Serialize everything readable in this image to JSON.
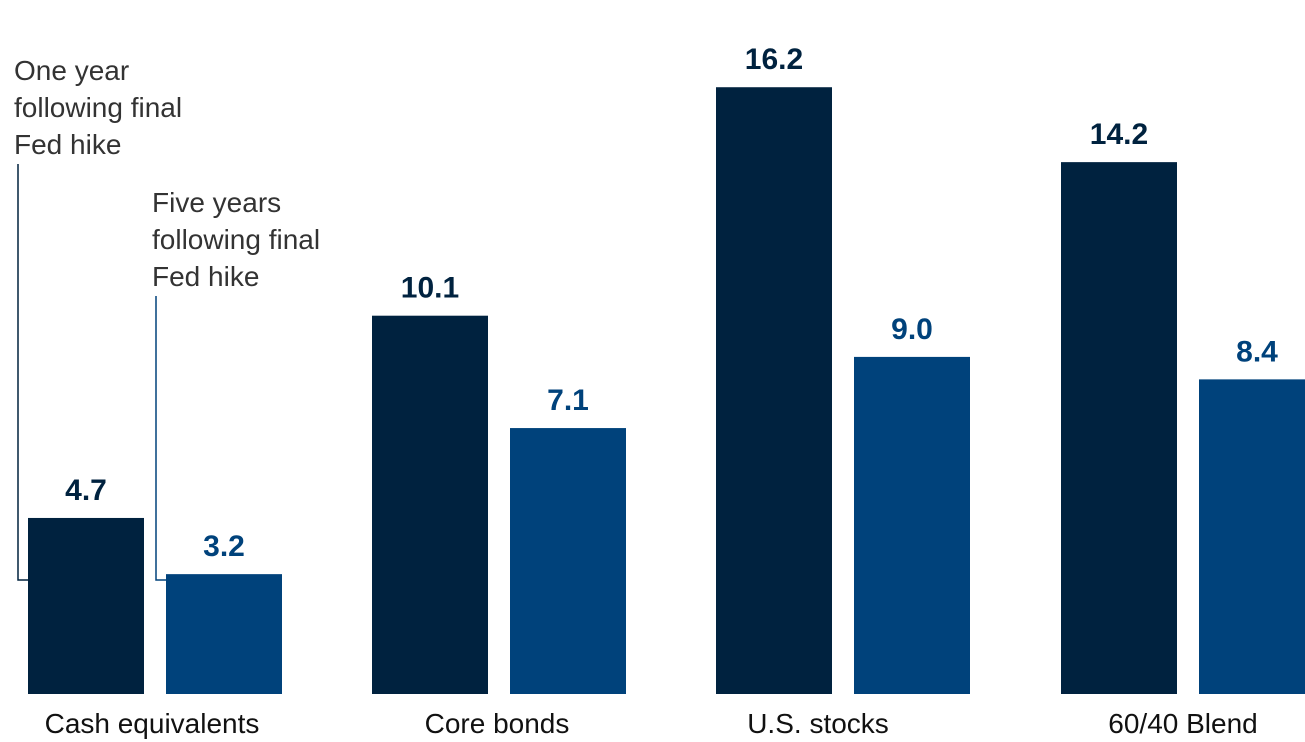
{
  "chart_data": {
    "type": "bar",
    "categories": [
      "Cash equivalents",
      "Core bonds",
      "U.S. stocks",
      "60/40 Blend"
    ],
    "series": [
      {
        "name": "One year following final Fed hike",
        "name_lines": [
          "One year",
          "following final",
          "Fed hike"
        ],
        "color": "#00223F",
        "values": [
          4.7,
          10.1,
          16.2,
          14.2
        ],
        "labels": [
          "4.7",
          "10.1",
          "16.2",
          "14.2"
        ]
      },
      {
        "name": "Five years following final Fed hike",
        "name_lines": [
          "Five years",
          "following final",
          "Fed hike"
        ],
        "color": "#00427B",
        "values": [
          3.2,
          7.1,
          9.0,
          8.4
        ],
        "labels": [
          "3.2",
          "7.1",
          "9.0",
          "8.4"
        ]
      }
    ],
    "legend": "callout-left",
    "ylim": [
      0,
      16.9
    ],
    "grid": false,
    "title": "",
    "xlabel": "",
    "ylabel": ""
  }
}
